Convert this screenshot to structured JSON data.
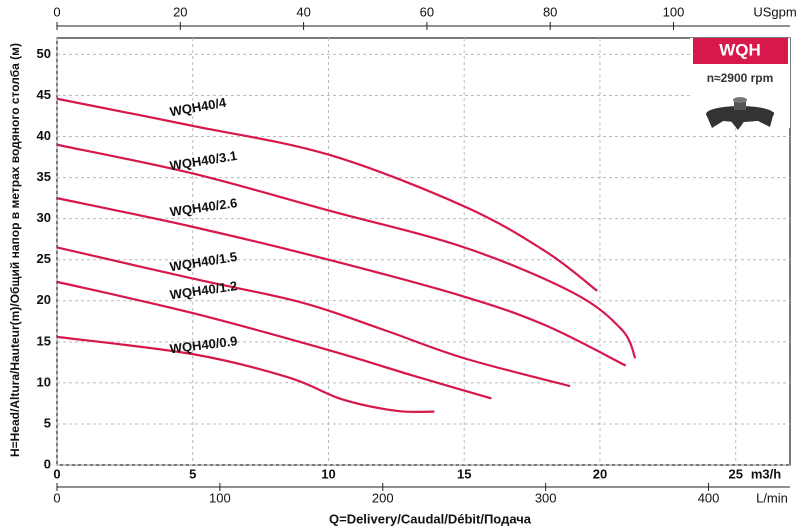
{
  "chart_data": {
    "type": "line",
    "y_label": "H=Head/Altura/Hauteur(m)/Общий напор в метрах водяного столба (м)",
    "x_label": "Q=Delivery/Caudal/Débit/Подача",
    "x_unit": "m3/h",
    "xlim": [
      0,
      27
    ],
    "xticks": [
      0,
      5,
      10,
      15,
      20,
      25
    ],
    "ylim": [
      0,
      52
    ],
    "yticks": [
      0,
      5,
      10,
      15,
      20,
      25,
      30,
      35,
      40,
      45,
      50
    ],
    "grid": true,
    "top_axis": {
      "label": "USgpm",
      "lim": [
        0,
        118.9
      ],
      "ticks": [
        0,
        20,
        40,
        60,
        80,
        100
      ]
    },
    "bottom_axis": {
      "label": "L/min",
      "lim": [
        0,
        450
      ],
      "ticks": [
        0,
        100,
        200,
        300,
        400
      ]
    },
    "badge": "WQH",
    "speed": "n≈2900 rpm",
    "series": [
      {
        "name": "WQH40/4",
        "color": "#d6184a",
        "x": [
          0,
          5,
          10,
          15,
          18,
          19.9
        ],
        "values": [
          44.6,
          41.3,
          37.8,
          31.5,
          26,
          21.2
        ]
      },
      {
        "name": "WQH40/3.1",
        "color": "#d6184a",
        "x": [
          0,
          5,
          10,
          15,
          19,
          20.8,
          21.3
        ],
        "values": [
          39,
          35.5,
          31,
          26.5,
          21,
          16.5,
          13
        ]
      },
      {
        "name": "WQH40/2.6",
        "color": "#d6184a",
        "x": [
          0,
          5,
          10,
          15,
          18,
          20.95
        ],
        "values": [
          32.5,
          29,
          25,
          20.5,
          17,
          12.1
        ]
      },
      {
        "name": "WQH40/1.5",
        "color": "#d6184a",
        "x": [
          0,
          5,
          9,
          12,
          15,
          18.9
        ],
        "values": [
          26.5,
          22.7,
          19.8,
          16.5,
          13,
          9.6
        ]
      },
      {
        "name": "WQH40/1.2",
        "color": "#d6184a",
        "x": [
          0,
          5,
          10,
          13,
          16
        ],
        "values": [
          22.3,
          18.5,
          14,
          11,
          8.1
        ]
      },
      {
        "name": "WQH40/0.9",
        "color": "#d6184a",
        "x": [
          0,
          5,
          8.5,
          10.5,
          12.5,
          13.9
        ],
        "values": [
          15.6,
          13.5,
          10.7,
          8,
          6.6,
          6.5
        ]
      }
    ]
  }
}
